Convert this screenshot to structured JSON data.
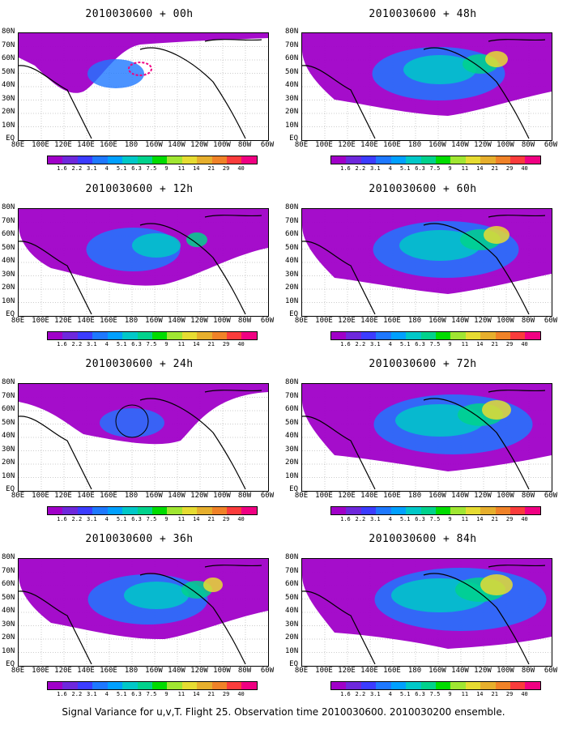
{
  "footer": "Signal Variance for u,v,T. Flight 25. Observation time 2010030600. 2010030200 ensemble.",
  "panels": [
    {
      "title": "2010030600 + 00h"
    },
    {
      "title": "2010030600 + 48h"
    },
    {
      "title": "2010030600 + 12h"
    },
    {
      "title": "2010030600 + 60h"
    },
    {
      "title": "2010030600 + 24h"
    },
    {
      "title": "2010030600 + 72h"
    },
    {
      "title": "2010030600 + 36h"
    },
    {
      "title": "2010030600 + 84h"
    }
  ],
  "lat_labels": [
    "80N",
    "70N",
    "60N",
    "50N",
    "40N",
    "30N",
    "20N",
    "10N",
    "EQ"
  ],
  "lon_labels": [
    "80E",
    "100E",
    "120E",
    "140E",
    "160E",
    "180",
    "160W",
    "140W",
    "120W",
    "100W",
    "80W",
    "60W"
  ],
  "colorbar": {
    "labels": [
      "1.6",
      "2.2",
      "3.1",
      "4",
      "5.1",
      "6.3",
      "7.5",
      "9",
      "11",
      "14",
      "21",
      "29",
      "40"
    ],
    "colors": [
      "#a000c8",
      "#6e28dc",
      "#3c3cff",
      "#1e78ff",
      "#00a0ff",
      "#00c8c8",
      "#00d28c",
      "#00dc00",
      "#a0e632",
      "#e6dc32",
      "#e6af2d",
      "#f08228",
      "#fa3c3c",
      "#f00082"
    ]
  }
}
